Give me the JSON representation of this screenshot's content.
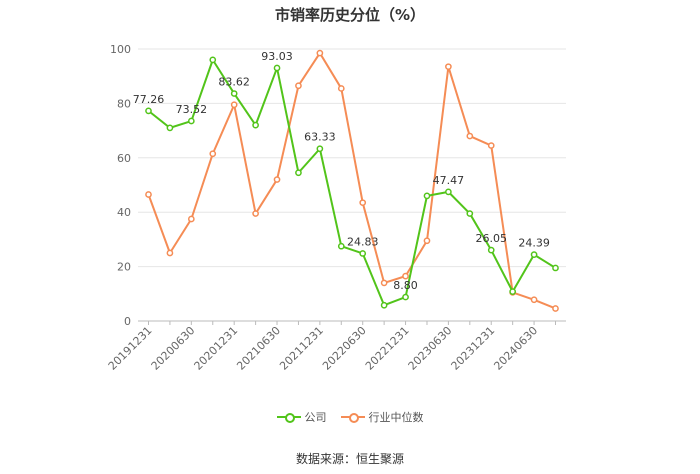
{
  "chart_data": {
    "type": "line",
    "title": "市销率历史分位（%）",
    "source": "数据来源：恒生聚源",
    "ylim": [
      0,
      100
    ],
    "yticks": [
      0,
      20,
      40,
      60,
      80,
      100
    ],
    "x_tick_labels": [
      "20191231",
      "20200630",
      "20201231",
      "20210630",
      "20211231",
      "20220630",
      "20221231",
      "20230630",
      "20231231",
      "20240630"
    ],
    "legend_position": "bottom",
    "grid": true,
    "series": [
      {
        "name": "公司",
        "color": "#52c41a",
        "values": [
          77.26,
          71.0,
          73.52,
          96.0,
          83.62,
          72.0,
          93.03,
          54.5,
          63.33,
          27.5,
          24.83,
          5.8,
          8.8,
          46.0,
          47.47,
          39.5,
          26.05,
          10.8,
          24.39,
          19.5
        ],
        "labels": [
          {
            "index": 0,
            "text": "77.26"
          },
          {
            "index": 2,
            "text": "73.52"
          },
          {
            "index": 4,
            "text": "83.62"
          },
          {
            "index": 6,
            "text": "93.03"
          },
          {
            "index": 8,
            "text": "63.33"
          },
          {
            "index": 10,
            "text": "24.83"
          },
          {
            "index": 12,
            "text": "8.80"
          },
          {
            "index": 14,
            "text": "47.47"
          },
          {
            "index": 16,
            "text": "26.05"
          },
          {
            "index": 18,
            "text": "24.39"
          }
        ]
      },
      {
        "name": "行业中位数",
        "color": "#f58c55",
        "values": [
          46.5,
          25.0,
          37.5,
          61.5,
          79.5,
          39.5,
          52.0,
          86.5,
          98.5,
          85.5,
          43.5,
          14.0,
          16.5,
          29.5,
          93.5,
          68.0,
          64.5,
          10.5,
          7.8,
          4.6
        ]
      }
    ]
  }
}
